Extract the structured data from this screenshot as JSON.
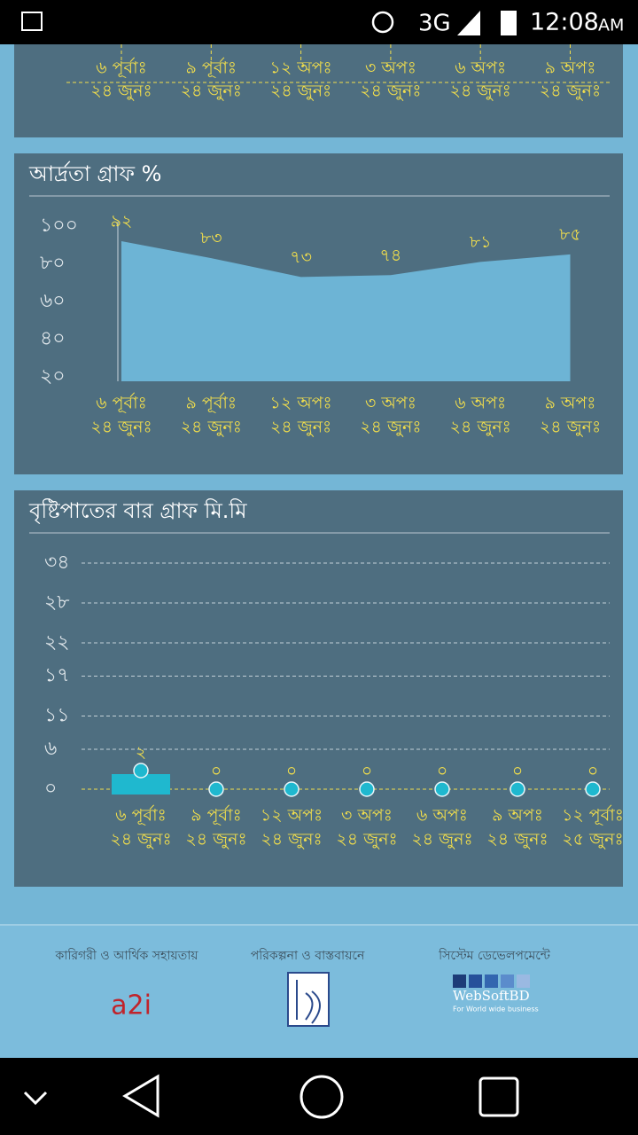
{
  "status_bar": {
    "network": "3G",
    "time": "12:08",
    "meridiem": "AM"
  },
  "top_card": {
    "categories": [
      "৬ পূর্বাঃ",
      "৯ পূর্বাঃ",
      "১২ অপঃ",
      "৩ অপঃ",
      "৬ অপঃ",
      "৯ অপঃ"
    ],
    "dates": [
      "২৪ জুনঃ",
      "২৪ জুনঃ",
      "২৪ জুনঃ",
      "২৪ জুনঃ",
      "২৪ জুনঃ",
      "২৪ জুনঃ"
    ]
  },
  "chart_data": [
    {
      "type": "area",
      "title": "আর্দ্রতা গ্রাফ %",
      "categories": [
        "৬ পূর্বাঃ",
        "৯ পূর্বাঃ",
        "১২ অপঃ",
        "৩ অপঃ",
        "৬ অপঃ",
        "৯ অপঃ"
      ],
      "dates": [
        "২৪ জুনঃ",
        "২৪ জুনঃ",
        "২৪ জুনঃ",
        "২৪ জুনঃ",
        "২৪ জুনঃ",
        "২৪ জুনঃ"
      ],
      "values": [
        92,
        83,
        73,
        74,
        81,
        85
      ],
      "value_labels": [
        "৯২",
        "৮৩",
        "৭৩",
        "৭৪",
        "৮১",
        "৮৫"
      ],
      "color": "#6db4d5",
      "ylim": [
        20,
        100
      ],
      "yticks": [
        {
          "value": 100,
          "label": "১০০"
        },
        {
          "value": 80,
          "label": "৮০"
        },
        {
          "value": 60,
          "label": "৬০"
        },
        {
          "value": 40,
          "label": "৪০"
        },
        {
          "value": 20,
          "label": "২০"
        }
      ],
      "grid": false
    },
    {
      "type": "bar",
      "title": "বৃষ্টিপাতের বার গ্রাফ মি.মি",
      "categories": [
        "৬ পূর্বাঃ",
        "৯ পূর্বাঃ",
        "১২ অপঃ",
        "৩ অপঃ",
        "৬ অপঃ",
        "৯ অপঃ",
        "১২ পূর্বাঃ"
      ],
      "dates": [
        "২৪ জুনঃ",
        "২৪ জুনঃ",
        "২৪ জুনঃ",
        "২৪ জুনঃ",
        "২৪ জুনঃ",
        "২৪ জুনঃ",
        "২৫ জুনঃ"
      ],
      "values": [
        2,
        0,
        0,
        0,
        0,
        0,
        0
      ],
      "value_labels": [
        "২",
        "০",
        "০",
        "০",
        "০",
        "০",
        "০"
      ],
      "color": "#1fb8cf",
      "ylim": [
        0,
        34
      ],
      "yticks": [
        {
          "value": 34,
          "label": "৩৪"
        },
        {
          "value": 28,
          "label": "২৮"
        },
        {
          "value": 22,
          "label": "২২"
        },
        {
          "value": 17,
          "label": "১৭"
        },
        {
          "value": 11,
          "label": "১১"
        },
        {
          "value": 6,
          "label": "৬"
        },
        {
          "value": 0,
          "label": "০"
        }
      ],
      "grid": true
    }
  ],
  "footer": {
    "sections": [
      {
        "caption": "কারিগরী ও আর্থিক সহায়তায়",
        "logo": "a2i"
      },
      {
        "caption": "পরিকল্পনা ও বাস্তবায়নে"
      },
      {
        "caption": "সিস্টেম ডেভেলপমেন্টে",
        "logo": "WebSoftBD",
        "tagline": "For World wide business"
      }
    ]
  }
}
